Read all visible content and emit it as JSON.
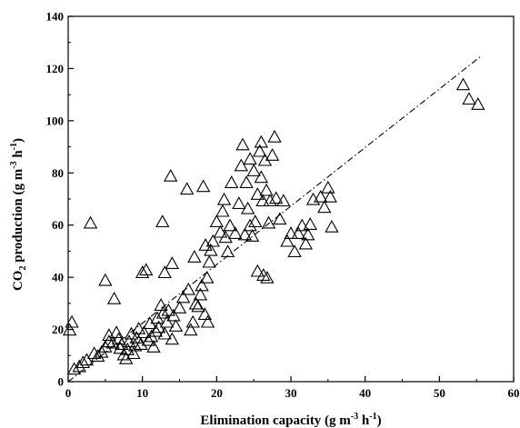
{
  "chart_data": {
    "type": "scatter",
    "xlabel": "Elimination capacity (g m-3 h-1)",
    "ylabel": "CO2 production (g m-3 h-1)",
    "xlim": [
      0,
      60
    ],
    "ylim": [
      0,
      140
    ],
    "xticks": [
      0,
      10,
      20,
      30,
      40,
      50,
      60
    ],
    "yticks": [
      0,
      20,
      40,
      60,
      80,
      100,
      120,
      140
    ],
    "marker": "open-triangle",
    "grid": false,
    "legend": "none",
    "trendline": {
      "style": "dash-dot",
      "x": [
        0,
        55.5
      ],
      "y": [
        0,
        124.5
      ]
    },
    "points": [
      [
        0.2,
        19.5
      ],
      [
        0.5,
        22.5
      ],
      [
        0.8,
        4.5
      ],
      [
        1.5,
        5.5
      ],
      [
        2.0,
        7.0
      ],
      [
        2.5,
        8.0
      ],
      [
        3.0,
        60.5
      ],
      [
        3.5,
        10.5
      ],
      [
        4.0,
        9.5
      ],
      [
        4.5,
        11.0
      ],
      [
        5.0,
        38.5
      ],
      [
        5.0,
        13.0
      ],
      [
        5.5,
        15.0
      ],
      [
        5.5,
        17.5
      ],
      [
        6.0,
        14.5
      ],
      [
        6.2,
        31.5
      ],
      [
        6.5,
        18.5
      ],
      [
        6.8,
        16.0
      ],
      [
        7.0,
        12.5
      ],
      [
        7.2,
        14.0
      ],
      [
        7.5,
        10.0
      ],
      [
        7.8,
        8.5
      ],
      [
        8.0,
        12.0
      ],
      [
        8.2,
        15.0
      ],
      [
        8.5,
        18.0
      ],
      [
        8.8,
        10.5
      ],
      [
        9.0,
        13.5
      ],
      [
        9.2,
        16.5
      ],
      [
        9.5,
        20.0
      ],
      [
        9.8,
        14.0
      ],
      [
        10.0,
        41.5
      ],
      [
        10.2,
        18.5
      ],
      [
        10.5,
        42.5
      ],
      [
        10.8,
        15.5
      ],
      [
        11.0,
        22.0
      ],
      [
        11.2,
        17.0
      ],
      [
        11.5,
        13.0
      ],
      [
        11.8,
        19.0
      ],
      [
        12.0,
        24.0
      ],
      [
        12.2,
        20.5
      ],
      [
        12.5,
        29.0
      ],
      [
        12.7,
        61.0
      ],
      [
        12.8,
        26.0
      ],
      [
        13.0,
        18.0
      ],
      [
        13.0,
        41.5
      ],
      [
        13.3,
        22.5
      ],
      [
        13.5,
        27.0
      ],
      [
        13.8,
        78.5
      ],
      [
        14.0,
        16.0
      ],
      [
        14.0,
        45.0
      ],
      [
        14.2,
        25.0
      ],
      [
        14.5,
        21.0
      ],
      [
        15.0,
        28.0
      ],
      [
        15.5,
        32.0
      ],
      [
        16.0,
        73.5
      ],
      [
        16.2,
        35.0
      ],
      [
        16.5,
        19.5
      ],
      [
        16.8,
        22.5
      ],
      [
        17.0,
        47.5
      ],
      [
        17.2,
        29.5
      ],
      [
        17.5,
        28.5
      ],
      [
        17.8,
        33.0
      ],
      [
        18.0,
        36.5
      ],
      [
        18.2,
        74.5
      ],
      [
        18.4,
        25.5
      ],
      [
        18.5,
        52.0
      ],
      [
        18.7,
        39.5
      ],
      [
        18.8,
        22.5
      ],
      [
        19.0,
        45.5
      ],
      [
        19.2,
        50.0
      ],
      [
        19.5,
        53.5
      ],
      [
        20.0,
        61.0
      ],
      [
        20.5,
        57.0
      ],
      [
        20.8,
        65.0
      ],
      [
        21.0,
        69.5
      ],
      [
        21.2,
        55.0
      ],
      [
        21.5,
        49.5
      ],
      [
        21.8,
        59.5
      ],
      [
        22.0,
        76.0
      ],
      [
        22.5,
        56.5
      ],
      [
        23.0,
        68.0
      ],
      [
        23.3,
        82.5
      ],
      [
        23.5,
        90.5
      ],
      [
        23.8,
        56.0
      ],
      [
        24.0,
        76.0
      ],
      [
        24.2,
        66.0
      ],
      [
        24.5,
        85.0
      ],
      [
        24.5,
        59.5
      ],
      [
        24.8,
        55.5
      ],
      [
        25.0,
        80.5
      ],
      [
        25.2,
        61.0
      ],
      [
        25.5,
        71.5
      ],
      [
        25.5,
        42.0
      ],
      [
        25.8,
        88.0
      ],
      [
        26.0,
        91.5
      ],
      [
        26.0,
        78.0
      ],
      [
        26.2,
        69.0
      ],
      [
        26.3,
        40.5
      ],
      [
        26.5,
        84.5
      ],
      [
        26.7,
        73.0
      ],
      [
        26.8,
        39.5
      ],
      [
        27.0,
        60.5
      ],
      [
        27.2,
        69.0
      ],
      [
        27.5,
        86.5
      ],
      [
        27.8,
        93.5
      ],
      [
        28.0,
        70.0
      ],
      [
        28.5,
        62.0
      ],
      [
        29.0,
        69.0
      ],
      [
        29.5,
        53.5
      ],
      [
        30.0,
        56.5
      ],
      [
        30.5,
        49.5
      ],
      [
        31.0,
        56.5
      ],
      [
        31.5,
        59.5
      ],
      [
        32.0,
        52.5
      ],
      [
        32.3,
        56.0
      ],
      [
        32.6,
        60.0
      ],
      [
        33.0,
        69.5
      ],
      [
        34.0,
        70.5
      ],
      [
        34.5,
        66.5
      ],
      [
        35.0,
        74.0
      ],
      [
        35.3,
        70.5
      ],
      [
        35.5,
        59.0
      ],
      [
        53.2,
        113.5
      ],
      [
        54.0,
        108.0
      ],
      [
        55.2,
        106.0
      ]
    ]
  }
}
